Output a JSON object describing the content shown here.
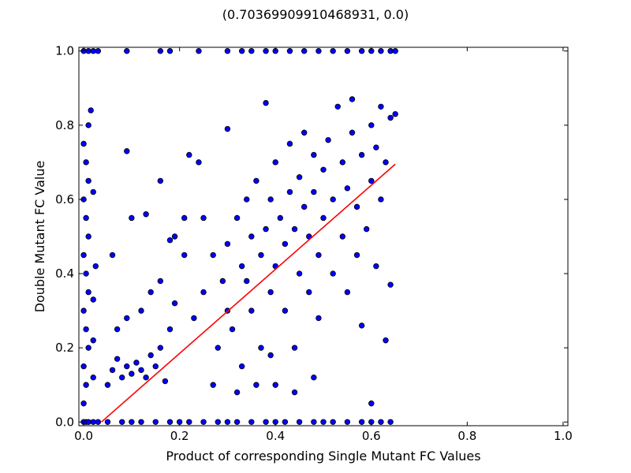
{
  "chart_data": {
    "type": "scatter",
    "title": "(0.70369909910468931, 0.0)",
    "xlabel": "Product of corresponding Single Mutant FC Values",
    "ylabel": "Double Mutant FC Value",
    "xlim": [
      -0.01,
      1.01
    ],
    "ylim": [
      -0.01,
      1.01
    ],
    "xticks": [
      0.0,
      0.2,
      0.4,
      0.6,
      0.8,
      1.0
    ],
    "xtick_labels": [
      "0.0",
      "0.2",
      "0.4",
      "0.6",
      "0.8",
      "1.0"
    ],
    "yticks": [
      0.0,
      0.2,
      0.4,
      0.6,
      0.8,
      1.0
    ],
    "ytick_labels": [
      "0.0",
      "0.2",
      "0.4",
      "0.6",
      "0.8",
      "1.0"
    ],
    "grid": false,
    "legend": "none",
    "series": [
      {
        "marker_color": "#0000ff",
        "points": [
          [
            0.0,
            0.0
          ],
          [
            0.005,
            0.0
          ],
          [
            0.01,
            0.0
          ],
          [
            0.02,
            0.0
          ],
          [
            0.03,
            0.0
          ],
          [
            0.05,
            0.0
          ],
          [
            0.08,
            0.0
          ],
          [
            0.1,
            0.0
          ],
          [
            0.12,
            0.0
          ],
          [
            0.15,
            0.0
          ],
          [
            0.18,
            0.0
          ],
          [
            0.2,
            0.0
          ],
          [
            0.22,
            0.0
          ],
          [
            0.25,
            0.0
          ],
          [
            0.28,
            0.0
          ],
          [
            0.3,
            0.0
          ],
          [
            0.32,
            0.0
          ],
          [
            0.35,
            0.0
          ],
          [
            0.38,
            0.0
          ],
          [
            0.4,
            0.0
          ],
          [
            0.42,
            0.0
          ],
          [
            0.45,
            0.0
          ],
          [
            0.48,
            0.0
          ],
          [
            0.5,
            0.0
          ],
          [
            0.52,
            0.0
          ],
          [
            0.55,
            0.0
          ],
          [
            0.58,
            0.0
          ],
          [
            0.6,
            0.0
          ],
          [
            0.62,
            0.0
          ],
          [
            0.64,
            0.0
          ],
          [
            0.0,
            1.0
          ],
          [
            0.01,
            1.0
          ],
          [
            0.02,
            1.0
          ],
          [
            0.03,
            1.0
          ],
          [
            0.09,
            1.0
          ],
          [
            0.16,
            1.0
          ],
          [
            0.18,
            1.0
          ],
          [
            0.24,
            1.0
          ],
          [
            0.3,
            1.0
          ],
          [
            0.33,
            1.0
          ],
          [
            0.35,
            1.0
          ],
          [
            0.38,
            1.0
          ],
          [
            0.4,
            1.0
          ],
          [
            0.43,
            1.0
          ],
          [
            0.46,
            1.0
          ],
          [
            0.49,
            1.0
          ],
          [
            0.52,
            1.0
          ],
          [
            0.55,
            1.0
          ],
          [
            0.58,
            1.0
          ],
          [
            0.6,
            1.0
          ],
          [
            0.62,
            1.0
          ],
          [
            0.64,
            1.0
          ],
          [
            0.65,
            1.0
          ],
          [
            0.0,
            0.05
          ],
          [
            0.005,
            0.1
          ],
          [
            0.0,
            0.15
          ],
          [
            0.01,
            0.2
          ],
          [
            0.005,
            0.25
          ],
          [
            0.0,
            0.3
          ],
          [
            0.01,
            0.35
          ],
          [
            0.005,
            0.4
          ],
          [
            0.0,
            0.45
          ],
          [
            0.01,
            0.5
          ],
          [
            0.005,
            0.55
          ],
          [
            0.0,
            0.6
          ],
          [
            0.01,
            0.65
          ],
          [
            0.005,
            0.7
          ],
          [
            0.0,
            0.75
          ],
          [
            0.01,
            0.8
          ],
          [
            0.015,
            0.84
          ],
          [
            0.02,
            0.12
          ],
          [
            0.02,
            0.22
          ],
          [
            0.02,
            0.33
          ],
          [
            0.025,
            0.42
          ],
          [
            0.02,
            0.62
          ],
          [
            0.05,
            0.1
          ],
          [
            0.06,
            0.14
          ],
          [
            0.07,
            0.17
          ],
          [
            0.08,
            0.12
          ],
          [
            0.09,
            0.15
          ],
          [
            0.1,
            0.13
          ],
          [
            0.11,
            0.16
          ],
          [
            0.12,
            0.14
          ],
          [
            0.13,
            0.12
          ],
          [
            0.14,
            0.18
          ],
          [
            0.15,
            0.15
          ],
          [
            0.16,
            0.2
          ],
          [
            0.17,
            0.11
          ],
          [
            0.18,
            0.25
          ],
          [
            0.07,
            0.25
          ],
          [
            0.09,
            0.28
          ],
          [
            0.12,
            0.3
          ],
          [
            0.14,
            0.35
          ],
          [
            0.16,
            0.38
          ],
          [
            0.19,
            0.32
          ],
          [
            0.21,
            0.45
          ],
          [
            0.19,
            0.5
          ],
          [
            0.16,
            0.65
          ],
          [
            0.09,
            0.73
          ],
          [
            0.22,
            0.72
          ],
          [
            0.24,
            0.7
          ],
          [
            0.06,
            0.45
          ],
          [
            0.1,
            0.55
          ],
          [
            0.13,
            0.56
          ],
          [
            0.18,
            0.49
          ],
          [
            0.21,
            0.55
          ],
          [
            0.23,
            0.28
          ],
          [
            0.25,
            0.35
          ],
          [
            0.25,
            0.55
          ],
          [
            0.27,
            0.45
          ],
          [
            0.28,
            0.2
          ],
          [
            0.29,
            0.38
          ],
          [
            0.3,
            0.48
          ],
          [
            0.3,
            0.79
          ],
          [
            0.31,
            0.25
          ],
          [
            0.32,
            0.55
          ],
          [
            0.33,
            0.15
          ],
          [
            0.33,
            0.42
          ],
          [
            0.34,
            0.6
          ],
          [
            0.35,
            0.3
          ],
          [
            0.35,
            0.5
          ],
          [
            0.36,
            0.65
          ],
          [
            0.37,
            0.2
          ],
          [
            0.37,
            0.45
          ],
          [
            0.38,
            0.52
          ],
          [
            0.38,
            0.86
          ],
          [
            0.39,
            0.35
          ],
          [
            0.39,
            0.6
          ],
          [
            0.4,
            0.1
          ],
          [
            0.4,
            0.42
          ],
          [
            0.4,
            0.7
          ],
          [
            0.41,
            0.55
          ],
          [
            0.42,
            0.3
          ],
          [
            0.42,
            0.48
          ],
          [
            0.43,
            0.62
          ],
          [
            0.43,
            0.75
          ],
          [
            0.44,
            0.2
          ],
          [
            0.44,
            0.52
          ],
          [
            0.45,
            0.4
          ],
          [
            0.45,
            0.66
          ],
          [
            0.46,
            0.58
          ],
          [
            0.46,
            0.78
          ],
          [
            0.47,
            0.35
          ],
          [
            0.47,
            0.5
          ],
          [
            0.48,
            0.62
          ],
          [
            0.48,
            0.72
          ],
          [
            0.49,
            0.28
          ],
          [
            0.49,
            0.45
          ],
          [
            0.5,
            0.55
          ],
          [
            0.5,
            0.68
          ],
          [
            0.51,
            0.76
          ],
          [
            0.52,
            0.4
          ],
          [
            0.52,
            0.6
          ],
          [
            0.53,
            0.85
          ],
          [
            0.54,
            0.5
          ],
          [
            0.54,
            0.7
          ],
          [
            0.55,
            0.35
          ],
          [
            0.55,
            0.63
          ],
          [
            0.56,
            0.78
          ],
          [
            0.56,
            0.87
          ],
          [
            0.57,
            0.45
          ],
          [
            0.57,
            0.58
          ],
          [
            0.58,
            0.72
          ],
          [
            0.58,
            0.26
          ],
          [
            0.59,
            0.52
          ],
          [
            0.6,
            0.65
          ],
          [
            0.6,
            0.8
          ],
          [
            0.61,
            0.42
          ],
          [
            0.61,
            0.74
          ],
          [
            0.62,
            0.6
          ],
          [
            0.62,
            0.85
          ],
          [
            0.63,
            0.22
          ],
          [
            0.63,
            0.7
          ],
          [
            0.64,
            0.82
          ],
          [
            0.64,
            0.37
          ],
          [
            0.65,
            0.83
          ],
          [
            0.6,
            0.05
          ],
          [
            0.48,
            0.12
          ],
          [
            0.44,
            0.08
          ],
          [
            0.39,
            0.18
          ],
          [
            0.36,
            0.1
          ],
          [
            0.34,
            0.38
          ],
          [
            0.3,
            0.3
          ],
          [
            0.27,
            0.1
          ],
          [
            0.32,
            0.08
          ]
        ]
      }
    ],
    "fit_line": {
      "color": "#ff0000",
      "x": [
        0.037,
        0.65
      ],
      "y": [
        0.0,
        0.695
      ]
    }
  }
}
